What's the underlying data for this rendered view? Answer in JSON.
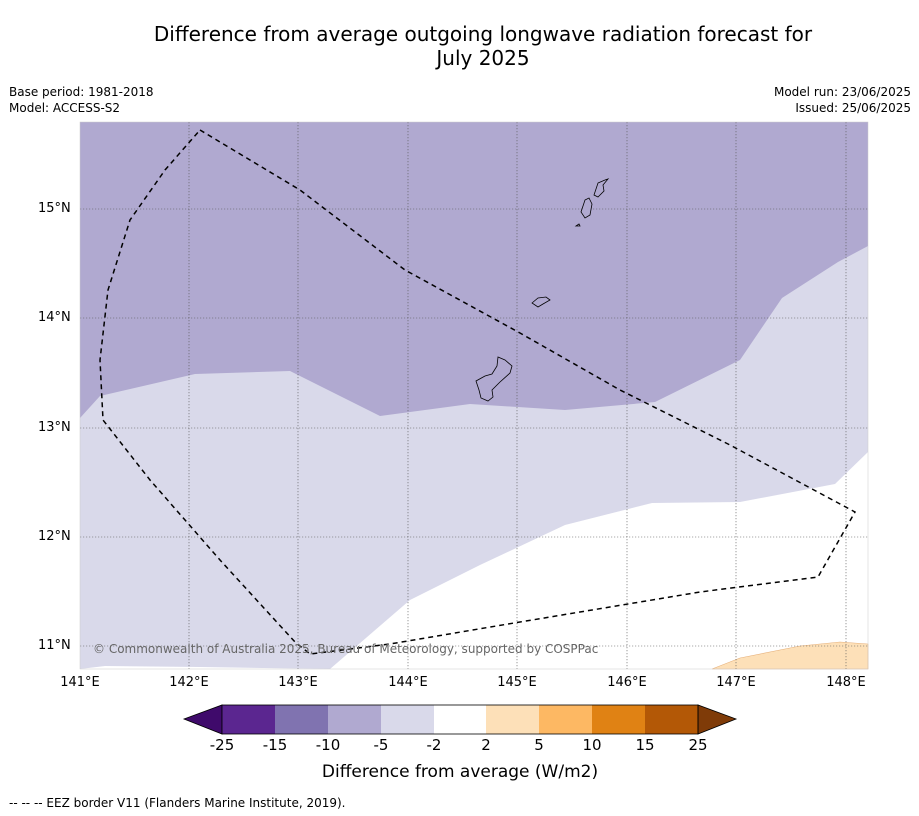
{
  "title_line1": "Difference from average outgoing longwave radiation forecast for",
  "title_line2": "July 2025",
  "base_period": "Base period: 1981-2018",
  "model": "Model: ACCESS-S2",
  "model_run": "Model run: 23/06/2025",
  "issued": "Issued: 25/06/2025",
  "lat_labels": [
    "15°N",
    "14°N",
    "13°N",
    "12°N",
    "11°N"
  ],
  "lon_labels": [
    "141°E",
    "142°E",
    "143°E",
    "144°E",
    "145°E",
    "146°E",
    "147°E",
    "148°E"
  ],
  "copyright": "© Commonwealth of Australia 2025, Bureau of Meteorology, supported by COSPPac",
  "colorbar": {
    "ticks": [
      "-25",
      "-15",
      "-10",
      "-5",
      "-2",
      "2",
      "5",
      "10",
      "15",
      "25"
    ],
    "colors": [
      "#3f0a6b",
      "#5b2690",
      "#8073b0",
      "#b0a9d0",
      "#d9d9ea",
      "#ffffff",
      "#fde0b8",
      "#fdb863",
      "#e08214",
      "#b35806",
      "#7f3b08"
    ],
    "title": "Difference from average (W/m2)"
  },
  "footnote": "--  --  -- EEZ border V11 (Flanders Marine Institute, 2019)."
}
